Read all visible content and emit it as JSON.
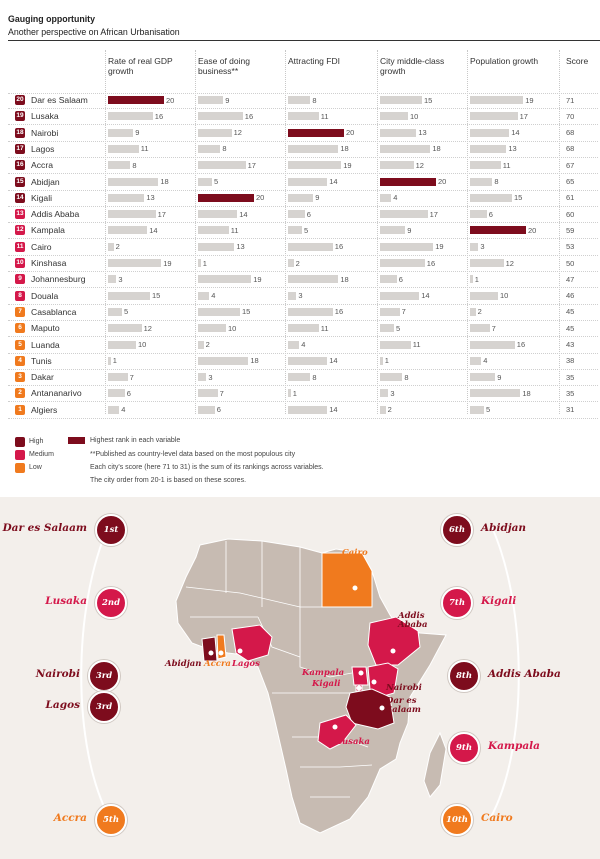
{
  "title": "Gauging opportunity",
  "subtitle": "Another perspective on African Urbanisation",
  "columns": [
    "Rate of real GDP growth",
    "Ease of doing business**",
    "Attracting FDI",
    "City middle-class growth",
    "Population growth",
    "Score"
  ],
  "colors": {
    "high": "#7d0c1d",
    "medium": "#d4184a",
    "low": "#f07a1e",
    "bar": "#d6d3d0",
    "top_bar": "#7d0c1d",
    "high_rank_legend": "#7d0c1d"
  },
  "chart_data": {
    "type": "table",
    "title": "Gauging opportunity",
    "subtitle": "Another perspective on African Urbanisation",
    "columns": [
      "Rate of real GDP growth",
      "Ease of doing business**",
      "Attracting FDI",
      "City middle-class growth",
      "Population growth",
      "Score"
    ],
    "rows": [
      {
        "rank": "20",
        "city": "Dar es Salaam",
        "tier": "high",
        "values": [
          20,
          9,
          8,
          15,
          19
        ],
        "score": 71
      },
      {
        "rank": "19",
        "city": "Lusaka",
        "tier": "high",
        "values": [
          16,
          16,
          11,
          10,
          17
        ],
        "score": 70
      },
      {
        "rank": "18",
        "city": "Nairobi",
        "tier": "high",
        "values": [
          9,
          12,
          20,
          13,
          14
        ],
        "score": 68
      },
      {
        "rank": "17",
        "city": "Lagos",
        "tier": "high",
        "values": [
          11,
          8,
          18,
          18,
          13
        ],
        "score": 68
      },
      {
        "rank": "16",
        "city": "Accra",
        "tier": "high",
        "values": [
          8,
          17,
          19,
          12,
          11
        ],
        "score": 67
      },
      {
        "rank": "15",
        "city": "Abidjan",
        "tier": "high",
        "values": [
          18,
          5,
          14,
          20,
          8
        ],
        "score": 65
      },
      {
        "rank": "14",
        "city": "Kigali",
        "tier": "high",
        "values": [
          13,
          20,
          9,
          4,
          15
        ],
        "score": 61
      },
      {
        "rank": "13",
        "city": "Addis Ababa",
        "tier": "medium",
        "values": [
          17,
          14,
          6,
          17,
          6
        ],
        "score": 60
      },
      {
        "rank": "12",
        "city": "Kampala",
        "tier": "medium",
        "values": [
          14,
          11,
          5,
          9,
          20
        ],
        "score": 59
      },
      {
        "rank": "11",
        "city": "Cairo",
        "tier": "medium",
        "values": [
          2,
          13,
          16,
          19,
          3
        ],
        "score": 53
      },
      {
        "rank": "10",
        "city": "Kinshasa",
        "tier": "medium",
        "values": [
          19,
          1,
          2,
          16,
          12
        ],
        "score": 50
      },
      {
        "rank": "9",
        "city": "Johannesburg",
        "tier": "medium",
        "values": [
          3,
          19,
          18,
          6,
          1
        ],
        "score": 47
      },
      {
        "rank": "8",
        "city": "Douala",
        "tier": "medium",
        "values": [
          15,
          4,
          3,
          14,
          10
        ],
        "score": 46
      },
      {
        "rank": "7",
        "city": "Casablanca",
        "tier": "low",
        "values": [
          5,
          15,
          16,
          7,
          2
        ],
        "score": 45
      },
      {
        "rank": "6",
        "city": "Maputo",
        "tier": "low",
        "values": [
          12,
          10,
          11,
          5,
          7
        ],
        "score": 45
      },
      {
        "rank": "5",
        "city": "Luanda",
        "tier": "low",
        "values": [
          10,
          2,
          4,
          11,
          16
        ],
        "score": 43
      },
      {
        "rank": "4",
        "city": "Tunis",
        "tier": "low",
        "values": [
          1,
          18,
          14,
          1,
          4
        ],
        "score": 38
      },
      {
        "rank": "3",
        "city": "Dakar",
        "tier": "low",
        "values": [
          7,
          3,
          8,
          8,
          9
        ],
        "score": 35
      },
      {
        "rank": "2",
        "city": "Antananarivo",
        "tier": "low",
        "values": [
          6,
          7,
          1,
          3,
          18
        ],
        "score": 35
      },
      {
        "rank": "1",
        "city": "Algiers",
        "tier": "low",
        "values": [
          4,
          6,
          14,
          2,
          5
        ],
        "score": 31
      }
    ]
  },
  "legend": {
    "high": "High",
    "medium": "Medium",
    "low": "Low",
    "highest_rank": "Highest rank in each variable"
  },
  "notes": [
    "**Published as country-level data based on the most populous city",
    "Each city's score (here 71 to 31) is the sum of its rankings across variables.",
    "The city order from 20-1 is based on these scores."
  ],
  "map": {
    "left": [
      {
        "city": "Dar es Salaam",
        "badge": "1st",
        "tier": "high"
      },
      {
        "city": "Lusaka",
        "badge": "2nd",
        "tier": "medium"
      },
      {
        "city": "Nairobi",
        "badge": "3rd",
        "tier": "high"
      },
      {
        "city": "Lagos",
        "badge": "3rd",
        "tier": "high"
      },
      {
        "city": "Accra",
        "badge": "5th",
        "tier": "low"
      }
    ],
    "right": [
      {
        "city": "Abidjan",
        "badge": "6th",
        "tier": "high"
      },
      {
        "city": "Kigali",
        "badge": "7th",
        "tier": "medium"
      },
      {
        "city": "Addis Ababa",
        "badge": "8th",
        "tier": "high"
      },
      {
        "city": "Kampala",
        "badge": "9th",
        "tier": "medium"
      },
      {
        "city": "Cairo",
        "badge": "10th",
        "tier": "low"
      }
    ],
    "labels": {
      "cairo": "Cairo",
      "addis": "Addis Ababa",
      "abidjan": "Abidjan",
      "accra": "Accra",
      "lagos": "Lagos",
      "kampala": "Kampala",
      "kigali": "Kigali",
      "nairobi": "Nairobi",
      "dar": "Dar es Salaam",
      "lusaka": "Lusaka"
    }
  }
}
